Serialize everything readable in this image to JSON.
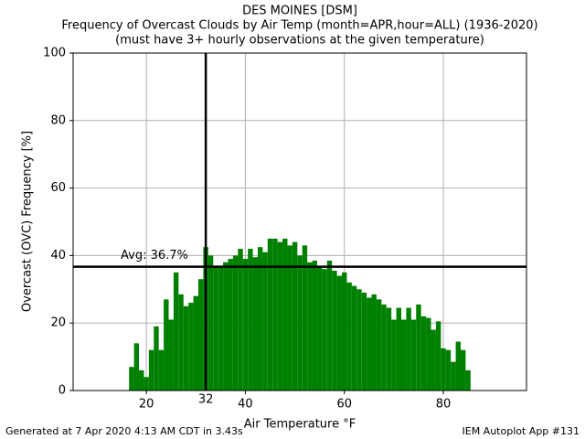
{
  "chart_data": {
    "type": "bar",
    "title": "DES MOINES [DSM]",
    "subtitle": "Frequency of Overcast Clouds by Air Temp (month=APR,hour=ALL) (1936-2020)",
    "subtitle2": "(must have 3+ hourly observations at the given temperature)",
    "xlabel": "Air Temperature °F",
    "ylabel": "Overcast (OVC) Frequency [%]",
    "x": [
      10,
      11,
      12,
      13,
      14,
      15,
      16,
      17,
      18,
      19,
      20,
      21,
      22,
      23,
      24,
      25,
      26,
      27,
      28,
      29,
      30,
      31,
      32,
      33,
      34,
      35,
      36,
      37,
      38,
      39,
      40,
      41,
      42,
      43,
      44,
      45,
      46,
      47,
      48,
      49,
      50,
      51,
      52,
      53,
      54,
      55,
      56,
      57,
      58,
      59,
      60,
      61,
      62,
      63,
      64,
      65,
      66,
      67,
      68,
      69,
      70,
      71,
      72,
      73,
      74,
      75,
      76,
      77,
      78,
      79,
      80,
      81,
      82,
      83,
      84,
      85,
      86,
      87,
      88,
      89,
      90,
      91,
      92
    ],
    "values": [
      0,
      0,
      0,
      0,
      0,
      0,
      0,
      7,
      14,
      6,
      4,
      12,
      19,
      12,
      27,
      21,
      35,
      28.5,
      25,
      26,
      28,
      33,
      42.5,
      40,
      37,
      36.5,
      38,
      39,
      40,
      42,
      39,
      42,
      39.5,
      42.5,
      41,
      45,
      45,
      44,
      45,
      43,
      44,
      40,
      43,
      38,
      38.5,
      36.5,
      36,
      38.5,
      35.5,
      34,
      35,
      32,
      31,
      30,
      29,
      27.5,
      28.5,
      27,
      25.5,
      24.5,
      21,
      24.5,
      21,
      24.5,
      21,
      25.5,
      22,
      21.5,
      18,
      20.5,
      12.5,
      12,
      8.5,
      14.5,
      12,
      6,
      0,
      0,
      0,
      0,
      0,
      0,
      0
    ],
    "color": "#008000",
    "xlim": [
      5.2,
      96.8
    ],
    "xticks": [
      20,
      40,
      60,
      80
    ],
    "ylim": [
      0,
      100
    ],
    "yticks": [
      0,
      20,
      40,
      60,
      80,
      100
    ],
    "grid": true,
    "vline": 32,
    "hline": 36.7,
    "hline_label": "Avg: 36.7%",
    "footer_left": "Generated at 7 Apr 2020 4:13 AM CDT in 3.43s",
    "footer_right": "IEM Autoplot App #131"
  }
}
